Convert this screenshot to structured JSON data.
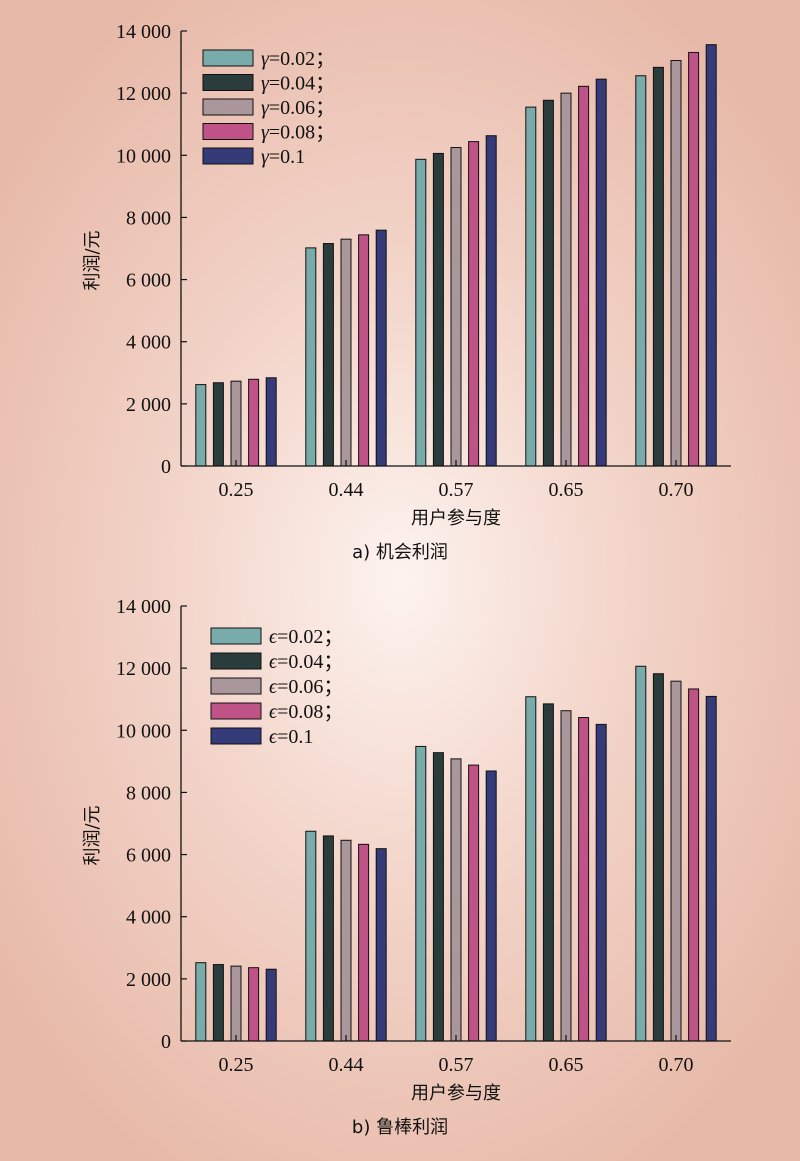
{
  "colors": [
    "#7aabab",
    "#2a3c3b",
    "#a9979c",
    "#bf5286",
    "#353a78"
  ],
  "chart_data": [
    {
      "type": "bar",
      "panel": "a",
      "caption": "a) 机会利润",
      "xlabel": "用户参与度",
      "ylabel": "利润/元",
      "ylim": [
        0,
        14000
      ],
      "yticks": [
        0,
        2000,
        4000,
        6000,
        8000,
        10000,
        12000,
        14000
      ],
      "ytick_labels": [
        "0",
        "2 000",
        "4 000",
        "6 000",
        "8 000",
        "10 000",
        "12 000",
        "14 000"
      ],
      "categories": [
        "0.25",
        "0.44",
        "0.57",
        "0.65",
        "0.70"
      ],
      "legend_position": "top-left",
      "legend_symbol": "γ",
      "series": [
        {
          "name": "γ=0.02；",
          "sym": "γ",
          "rest": "=0.02；",
          "values": [
            2620,
            7020,
            9870,
            11550,
            12560
          ]
        },
        {
          "name": "γ=0.04；",
          "sym": "γ",
          "rest": "=0.04；",
          "values": [
            2680,
            7160,
            10060,
            11770,
            12830
          ]
        },
        {
          "name": "γ=0.06；",
          "sym": "γ",
          "rest": "=0.06；",
          "values": [
            2730,
            7300,
            10250,
            12000,
            13050
          ]
        },
        {
          "name": "γ=0.08；",
          "sym": "γ",
          "rest": "=0.08；",
          "values": [
            2790,
            7440,
            10440,
            12220,
            13310
          ]
        },
        {
          "name": "γ=0.1",
          "sym": "γ",
          "rest": "=0.1",
          "values": [
            2840,
            7590,
            10630,
            12450,
            13560
          ]
        }
      ]
    },
    {
      "type": "bar",
      "panel": "b",
      "caption": "b) 鲁棒利润",
      "xlabel": "用户参与度",
      "ylabel": "利润/元",
      "ylim": [
        0,
        14000
      ],
      "yticks": [
        0,
        2000,
        4000,
        6000,
        8000,
        10000,
        12000,
        14000
      ],
      "ytick_labels": [
        "0",
        "2 000",
        "4 000",
        "6 000",
        "8 000",
        "10 000",
        "12 000",
        "14 000"
      ],
      "categories": [
        "0.25",
        "0.44",
        "0.57",
        "0.65",
        "0.70"
      ],
      "legend_position": "top-left",
      "legend_symbol": "ϵ",
      "series": [
        {
          "name": "ϵ=0.02；",
          "sym": "ϵ",
          "rest": "=0.02；",
          "values": [
            2520,
            6750,
            9480,
            11080,
            12060
          ]
        },
        {
          "name": "ϵ=0.04；",
          "sym": "ϵ",
          "rest": "=0.04；",
          "values": [
            2460,
            6600,
            9280,
            10850,
            11820
          ]
        },
        {
          "name": "ϵ=0.06；",
          "sym": "ϵ",
          "rest": "=0.06；",
          "values": [
            2410,
            6460,
            9080,
            10630,
            11580
          ]
        },
        {
          "name": "ϵ=0.08；",
          "sym": "ϵ",
          "rest": "=0.08；",
          "values": [
            2360,
            6330,
            8880,
            10410,
            11330
          ]
        },
        {
          "name": "ϵ=0.1",
          "sym": "ϵ",
          "rest": "=0.1",
          "values": [
            2310,
            6190,
            8690,
            10190,
            11090
          ]
        }
      ]
    }
  ]
}
